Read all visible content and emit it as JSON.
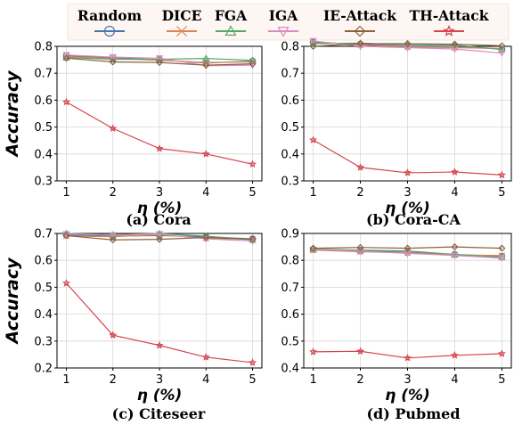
{
  "legend": [
    {
      "name": "Random",
      "color": "#4c72b0",
      "marker": "circle"
    },
    {
      "name": "DICE",
      "color": "#dd8452",
      "marker": "x"
    },
    {
      "name": "FGA",
      "color": "#55a868",
      "marker": "triangle-up"
    },
    {
      "name": "IGA",
      "color": "#da8bc3",
      "marker": "triangle-down"
    },
    {
      "name": "IE-Attack",
      "color": "#8c613c",
      "marker": "diamond"
    },
    {
      "name": "TH-Attack",
      "color": "#d64550",
      "marker": "star"
    }
  ],
  "chart_data": [
    {
      "type": "line",
      "caption": "(a) Cora",
      "xlabel": "η (%)",
      "ylabel": "Accuracy",
      "x": [
        1,
        2,
        3,
        4,
        5
      ],
      "ylim": [
        0.3,
        0.8
      ],
      "yticks": [
        "0.3",
        "0.4",
        "0.5",
        "0.6",
        "0.7",
        "0.8"
      ],
      "grid": true,
      "series": [
        {
          "name": "Random",
          "values": [
            0.765,
            0.758,
            0.75,
            0.738,
            0.745
          ]
        },
        {
          "name": "DICE",
          "values": [
            0.762,
            0.755,
            0.748,
            0.74,
            0.742
          ]
        },
        {
          "name": "FGA",
          "values": [
            0.758,
            0.752,
            0.752,
            0.755,
            0.748
          ]
        },
        {
          "name": "IGA",
          "values": [
            0.768,
            0.76,
            0.756,
            0.728,
            0.73
          ]
        },
        {
          "name": "IE-Attack",
          "values": [
            0.756,
            0.742,
            0.74,
            0.73,
            0.735
          ]
        },
        {
          "name": "TH-Attack",
          "values": [
            0.593,
            0.495,
            0.42,
            0.4,
            0.362
          ]
        }
      ]
    },
    {
      "type": "line",
      "caption": "(b) Cora-CA",
      "xlabel": "η (%)",
      "ylabel": "",
      "x": [
        1,
        2,
        3,
        4,
        5
      ],
      "ylim": [
        0.3,
        0.8
      ],
      "yticks": [
        "0.3",
        "0.4",
        "0.5",
        "0.6",
        "0.7",
        "0.8"
      ],
      "grid": true,
      "series": [
        {
          "name": "Random",
          "values": [
            0.815,
            0.808,
            0.8,
            0.8,
            0.79
          ]
        },
        {
          "name": "DICE",
          "values": [
            0.818,
            0.805,
            0.798,
            0.795,
            0.792
          ]
        },
        {
          "name": "FGA",
          "values": [
            0.81,
            0.812,
            0.805,
            0.805,
            0.788
          ]
        },
        {
          "name": "IGA",
          "values": [
            0.82,
            0.8,
            0.795,
            0.79,
            0.775
          ]
        },
        {
          "name": "IE-Attack",
          "values": [
            0.8,
            0.81,
            0.81,
            0.808,
            0.802
          ]
        },
        {
          "name": "TH-Attack",
          "values": [
            0.452,
            0.35,
            0.33,
            0.333,
            0.322
          ]
        }
      ]
    },
    {
      "type": "line",
      "caption": "(c) Citeseer",
      "xlabel": "η (%)",
      "ylabel": "Accuracy",
      "x": [
        1,
        2,
        3,
        4,
        5
      ],
      "ylim": [
        0.2,
        0.7
      ],
      "yticks": [
        "0.2",
        "0.3",
        "0.4",
        "0.5",
        "0.6",
        "0.7"
      ],
      "grid": true,
      "series": [
        {
          "name": "Random",
          "values": [
            0.695,
            0.69,
            0.692,
            0.688,
            0.68
          ]
        },
        {
          "name": "DICE",
          "values": [
            0.69,
            0.688,
            0.695,
            0.682,
            0.678
          ]
        },
        {
          "name": "FGA",
          "values": [
            0.7,
            0.695,
            0.7,
            0.69,
            0.676
          ]
        },
        {
          "name": "IGA",
          "values": [
            0.698,
            0.694,
            0.698,
            0.68,
            0.672
          ]
        },
        {
          "name": "IE-Attack",
          "values": [
            0.692,
            0.676,
            0.678,
            0.685,
            0.678
          ]
        },
        {
          "name": "TH-Attack",
          "values": [
            0.515,
            0.322,
            0.284,
            0.24,
            0.22
          ]
        }
      ]
    },
    {
      "type": "line",
      "caption": "(d) Pubmed",
      "xlabel": "η (%)",
      "ylabel": "",
      "x": [
        1,
        2,
        3,
        4,
        5
      ],
      "ylim": [
        0.4,
        0.9
      ],
      "yticks": [
        "0.4",
        "0.5",
        "0.6",
        "0.7",
        "0.8",
        "0.9"
      ],
      "grid": true,
      "series": [
        {
          "name": "Random",
          "values": [
            0.84,
            0.835,
            0.83,
            0.822,
            0.815
          ]
        },
        {
          "name": "DICE",
          "values": [
            0.838,
            0.832,
            0.828,
            0.82,
            0.818
          ]
        },
        {
          "name": "FGA",
          "values": [
            0.842,
            0.838,
            0.835,
            0.822,
            0.812
          ]
        },
        {
          "name": "IGA",
          "values": [
            0.84,
            0.834,
            0.826,
            0.818,
            0.808
          ]
        },
        {
          "name": "IE-Attack",
          "values": [
            0.845,
            0.848,
            0.845,
            0.85,
            0.845
          ]
        },
        {
          "name": "TH-Attack",
          "values": [
            0.46,
            0.462,
            0.437,
            0.447,
            0.453
          ]
        }
      ]
    }
  ]
}
